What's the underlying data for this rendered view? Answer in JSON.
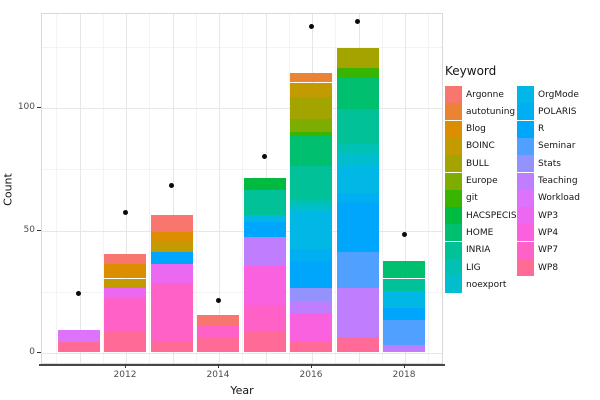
{
  "chart_data": {
    "type": "bar",
    "stacked": true,
    "xlabel": "Year",
    "ylabel": "Count",
    "legend_title": "Keyword",
    "x_tick_labels": [
      "2012",
      "2014",
      "2016",
      "2018"
    ],
    "x_tick_years": [
      2012,
      2014,
      2016,
      2018
    ],
    "y_tick_labels": [
      "0",
      "50",
      "100"
    ],
    "y_tick_values": [
      0,
      50,
      100
    ],
    "y_minor_values": [
      25,
      75,
      125
    ],
    "ylim": [
      0,
      140
    ],
    "grid": true,
    "legend_position": "right",
    "point_color": "#0A0A0A",
    "keywords": [
      {
        "name": "Argonne",
        "color": "#F8766D"
      },
      {
        "name": "autotuning",
        "color": "#EB8335"
      },
      {
        "name": "Blog",
        "color": "#DB8E00"
      },
      {
        "name": "BOINC",
        "color": "#C39B00"
      },
      {
        "name": "BULL",
        "color": "#A4A400"
      },
      {
        "name": "Europe",
        "color": "#7CAD00"
      },
      {
        "name": "git",
        "color": "#38B500"
      },
      {
        "name": "HACSPECIS",
        "color": "#00BB40"
      },
      {
        "name": "HOME",
        "color": "#00BF6E"
      },
      {
        "name": "INRIA",
        "color": "#00C197"
      },
      {
        "name": "LIG",
        "color": "#00C1B3"
      },
      {
        "name": "noexport",
        "color": "#00BECE"
      },
      {
        "name": "OrgMode",
        "color": "#00B7E5"
      },
      {
        "name": "POLARIS",
        "color": "#00AFF2"
      },
      {
        "name": "R",
        "color": "#00A6FB"
      },
      {
        "name": "Seminar",
        "color": "#4FA0FF"
      },
      {
        "name": "Stats",
        "color": "#9492FC"
      },
      {
        "name": "Teaching",
        "color": "#BF7EFE"
      },
      {
        "name": "Workload",
        "color": "#DC73FA"
      },
      {
        "name": "WP3",
        "color": "#ED68F1"
      },
      {
        "name": "WP4",
        "color": "#F961DE"
      },
      {
        "name": "WP7",
        "color": "#FF61C6"
      },
      {
        "name": "WP8",
        "color": "#FF6B96"
      }
    ],
    "bars": [
      {
        "year": 2011,
        "total": 9,
        "segments_top_to_bottom": [
          {
            "keyword": "Workload",
            "value": 5
          },
          {
            "keyword": "WP8",
            "value": 4
          }
        ]
      },
      {
        "year": 2012,
        "total": 40,
        "segments_top_to_bottom": [
          {
            "keyword": "Argonne",
            "value": 4
          },
          {
            "keyword": "Blog",
            "value": 6
          },
          {
            "keyword": "BOINC",
            "value": 4
          },
          {
            "keyword": "WP3",
            "value": 4
          },
          {
            "keyword": "WP7",
            "value": 14
          },
          {
            "keyword": "WP8",
            "value": 8
          }
        ]
      },
      {
        "year": 2013,
        "total": 56,
        "segments_top_to_bottom": [
          {
            "keyword": "Argonne",
            "value": 7
          },
          {
            "keyword": "Blog",
            "value": 4
          },
          {
            "keyword": "BOINC",
            "value": 4
          },
          {
            "keyword": "R",
            "value": 5
          },
          {
            "keyword": "WP3",
            "value": 8
          },
          {
            "keyword": "WP7",
            "value": 24
          },
          {
            "keyword": "WP8",
            "value": 4
          }
        ]
      },
      {
        "year": 2014,
        "total": 15,
        "segments_top_to_bottom": [
          {
            "keyword": "Argonne",
            "value": 4
          },
          {
            "keyword": "WP7",
            "value": 5
          },
          {
            "keyword": "WP8",
            "value": 6
          }
        ]
      },
      {
        "year": 2015,
        "total": 71,
        "segments_top_to_bottom": [
          {
            "keyword": "HACSPECIS",
            "value": 5
          },
          {
            "keyword": "INRIA",
            "value": 10
          },
          {
            "keyword": "OrgMode",
            "value": 3
          },
          {
            "keyword": "R",
            "value": 6
          },
          {
            "keyword": "Teaching",
            "value": 12
          },
          {
            "keyword": "WP4",
            "value": 16
          },
          {
            "keyword": "WP7",
            "value": 11
          },
          {
            "keyword": "WP8",
            "value": 8
          }
        ]
      },
      {
        "year": 2016,
        "total": 114,
        "segments_top_to_bottom": [
          {
            "keyword": "autotuning",
            "value": 4
          },
          {
            "keyword": "BOINC",
            "value": 6
          },
          {
            "keyword": "BULL",
            "value": 9
          },
          {
            "keyword": "Europe",
            "value": 5
          },
          {
            "keyword": "git",
            "value": 2
          },
          {
            "keyword": "HOME",
            "value": 12
          },
          {
            "keyword": "INRIA",
            "value": 14
          },
          {
            "keyword": "LIG",
            "value": 2
          },
          {
            "keyword": "noexport",
            "value": 3
          },
          {
            "keyword": "OrgMode",
            "value": 15
          },
          {
            "keyword": "POLARIS",
            "value": 5
          },
          {
            "keyword": "R",
            "value": 11
          },
          {
            "keyword": "Stats",
            "value": 5
          },
          {
            "keyword": "Teaching",
            "value": 5
          },
          {
            "keyword": "WP4",
            "value": 12
          },
          {
            "keyword": "WP8",
            "value": 4
          }
        ]
      },
      {
        "year": 2017,
        "total": 124,
        "segments_top_to_bottom": [
          {
            "keyword": "BULL",
            "value": 8
          },
          {
            "keyword": "git",
            "value": 4
          },
          {
            "keyword": "HOME",
            "value": 13
          },
          {
            "keyword": "INRIA",
            "value": 14
          },
          {
            "keyword": "LIG",
            "value": 4
          },
          {
            "keyword": "noexport",
            "value": 5
          },
          {
            "keyword": "OrgMode",
            "value": 11
          },
          {
            "keyword": "POLARIS",
            "value": 4
          },
          {
            "keyword": "R",
            "value": 20
          },
          {
            "keyword": "Seminar",
            "value": 15
          },
          {
            "keyword": "Teaching",
            "value": 20
          },
          {
            "keyword": "WP8",
            "value": 6
          }
        ]
      },
      {
        "year": 2018,
        "total": 37,
        "segments_top_to_bottom": [
          {
            "keyword": "HOME",
            "value": 7
          },
          {
            "keyword": "INRIA",
            "value": 5
          },
          {
            "keyword": "OrgMode",
            "value": 7
          },
          {
            "keyword": "R",
            "value": 5
          },
          {
            "keyword": "Seminar",
            "value": 10
          },
          {
            "keyword": "Teaching",
            "value": 3
          }
        ]
      }
    ],
    "points": [
      {
        "year": 2011,
        "value": 24
      },
      {
        "year": 2012,
        "value": 57
      },
      {
        "year": 2013,
        "value": 68
      },
      {
        "year": 2014,
        "value": 21
      },
      {
        "year": 2015,
        "value": 80
      },
      {
        "year": 2016,
        "value": 133
      },
      {
        "year": 2017,
        "value": 135
      },
      {
        "year": 2018,
        "value": 48
      }
    ]
  }
}
